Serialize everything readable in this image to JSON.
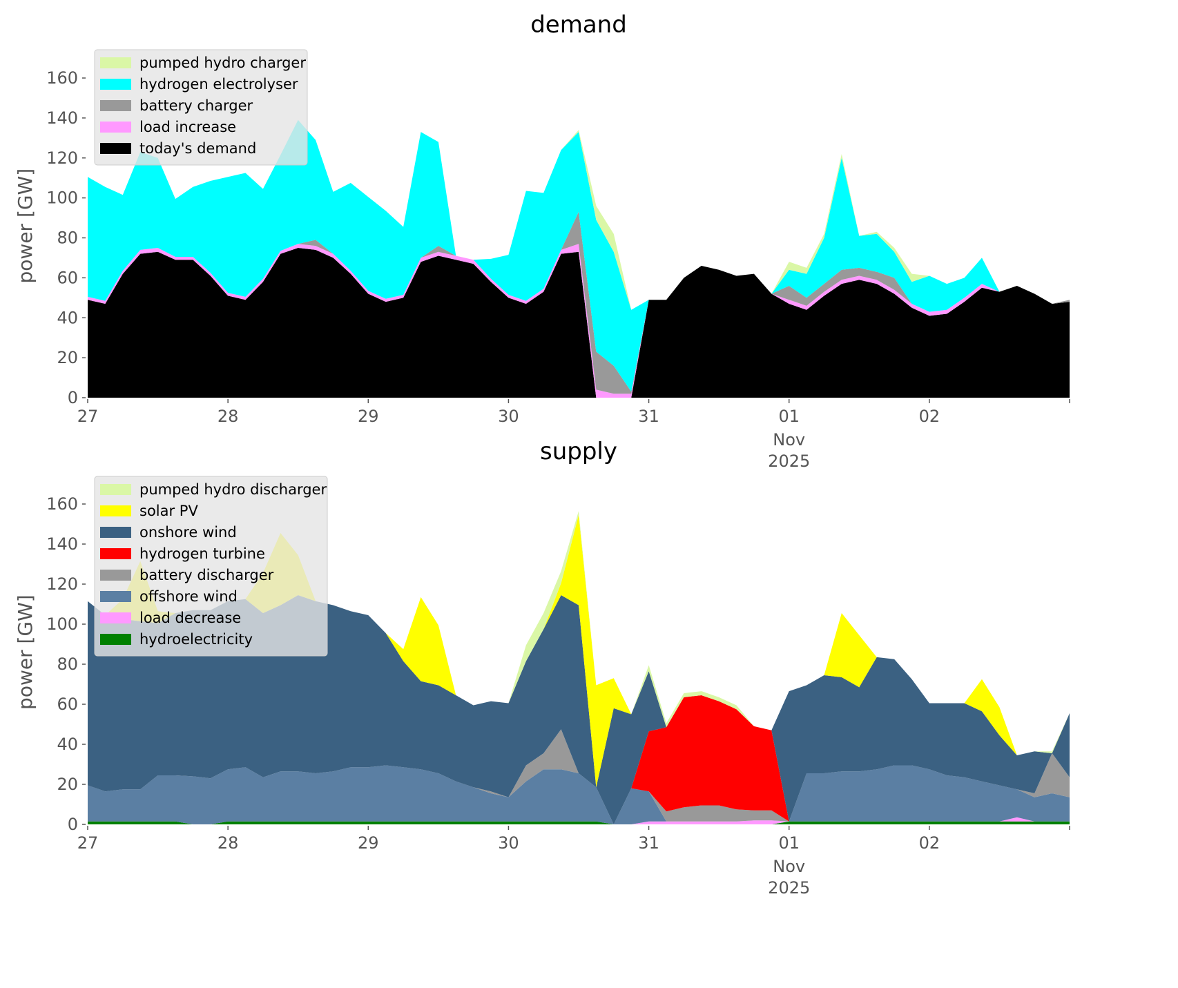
{
  "chart_data": [
    {
      "type": "area",
      "stacked": true,
      "title": "demand",
      "xlabel": "",
      "ylabel": "power [GW]",
      "ylim": [
        0,
        172
      ],
      "yticks": [
        0,
        20,
        40,
        60,
        80,
        100,
        120,
        140,
        160
      ],
      "xrange_days": [
        0,
        7
      ],
      "xticks": [
        {
          "day": 0,
          "label": "27"
        },
        {
          "day": 1,
          "label": "28"
        },
        {
          "day": 2,
          "label": "29"
        },
        {
          "day": 3,
          "label": "30"
        },
        {
          "day": 4,
          "label": "31"
        },
        {
          "day": 5,
          "label": "01",
          "sub": [
            "Nov",
            "2025"
          ]
        },
        {
          "day": 6,
          "label": "02"
        },
        {
          "day": 7,
          "label": ""
        }
      ],
      "x_hours_step": 3,
      "legend_position": "top-left",
      "series": [
        {
          "name": "today's demand",
          "color": "#000000",
          "values": [
            49,
            47,
            62,
            72,
            73,
            69,
            69,
            61,
            51,
            49,
            58,
            72,
            75,
            74,
            70,
            62,
            52,
            48,
            50,
            68,
            71,
            69,
            67,
            58,
            50,
            47,
            53,
            72,
            73,
            0,
            0,
            0,
            49,
            49,
            60,
            66,
            64,
            61,
            62,
            52,
            47,
            44,
            51,
            57,
            59,
            57,
            52,
            45,
            41,
            42,
            48,
            55,
            53,
            56,
            52,
            47,
            48
          ]
        },
        {
          "name": "load increase",
          "color": "#ff99ff",
          "values": [
            1.5,
            1.5,
            1.5,
            2,
            2,
            1.5,
            1.5,
            1.5,
            1.5,
            1.5,
            1.5,
            1.5,
            2,
            2,
            2,
            1.5,
            1.5,
            1.5,
            1.5,
            2,
            2,
            2,
            2,
            1.5,
            1.5,
            1.5,
            1.5,
            2,
            4,
            4,
            2,
            2,
            0,
            0,
            0,
            0,
            0,
            0,
            0,
            0,
            2,
            2,
            2,
            2,
            2,
            2,
            2,
            2,
            2,
            2,
            2,
            2,
            0,
            0,
            0,
            0,
            0
          ]
        },
        {
          "name": "battery charger",
          "color": "#999999",
          "values": [
            0,
            0,
            0,
            0,
            0,
            0,
            0,
            0,
            0,
            0,
            0,
            0,
            0,
            3,
            0,
            0,
            0,
            0,
            0,
            0,
            3,
            0,
            0,
            0,
            0,
            0,
            0,
            0,
            16,
            19,
            14,
            1,
            0,
            0,
            0,
            0,
            0,
            0,
            0,
            0,
            7,
            4,
            4,
            5,
            4,
            4,
            6,
            0,
            0,
            0,
            0,
            0,
            0,
            0,
            0,
            0,
            1
          ]
        },
        {
          "name": "hydrogen electrolyser",
          "color": "#00ffff",
          "values": [
            60,
            57,
            38,
            49,
            45,
            29,
            35,
            46,
            58,
            62,
            45,
            48,
            62,
            50,
            31,
            44,
            47,
            44,
            34,
            63,
            52,
            0,
            0,
            10,
            20,
            55,
            48,
            50,
            40,
            66,
            57,
            41,
            0,
            0,
            0,
            0,
            0,
            0,
            0,
            0,
            8,
            12,
            23,
            56,
            16,
            19,
            13,
            11,
            18,
            13,
            10,
            13,
            0,
            0,
            0,
            0,
            0
          ]
        },
        {
          "name": "pumped hydro charger",
          "color": "#daf7a6",
          "values": [
            0,
            0,
            0,
            0,
            0,
            0,
            0,
            0,
            0,
            0,
            0,
            0,
            0,
            0,
            0,
            0,
            0,
            0,
            0,
            0,
            0,
            0,
            0,
            0,
            0,
            0,
            0,
            0,
            1,
            7,
            9,
            0,
            0,
            0,
            0,
            0,
            0,
            0,
            0,
            0,
            4,
            3,
            2,
            2,
            0,
            1,
            2,
            4,
            0,
            0,
            0,
            0,
            0,
            0,
            0,
            0,
            0
          ]
        }
      ]
    },
    {
      "type": "area",
      "stacked": true,
      "title": "supply",
      "xlabel": "",
      "ylabel": "power [GW]",
      "ylim": [
        0,
        172
      ],
      "yticks": [
        0,
        20,
        40,
        60,
        80,
        100,
        120,
        140,
        160
      ],
      "xrange_days": [
        0,
        7
      ],
      "xticks": [
        {
          "day": 0,
          "label": "27"
        },
        {
          "day": 1,
          "label": "28"
        },
        {
          "day": 2,
          "label": "29"
        },
        {
          "day": 3,
          "label": "30"
        },
        {
          "day": 4,
          "label": "31"
        },
        {
          "day": 5,
          "label": "01",
          "sub": [
            "Nov",
            "2025"
          ]
        },
        {
          "day": 6,
          "label": "02"
        },
        {
          "day": 7,
          "label": ""
        }
      ],
      "x_hours_step": 3,
      "legend_position": "top-left",
      "series": [
        {
          "name": "hydroelectricity",
          "color": "#008000",
          "values": [
            1.5,
            1.5,
            1.5,
            1.5,
            1.5,
            1.5,
            0,
            0,
            1.5,
            1.5,
            1.5,
            1.5,
            1.5,
            1.5,
            1.5,
            1.5,
            1.5,
            1.5,
            1.5,
            1.5,
            1.5,
            1.5,
            1.5,
            1.5,
            1.5,
            1.5,
            1.5,
            1.5,
            1.5,
            1.5,
            0,
            0,
            0,
            0,
            0,
            0,
            0,
            0,
            0,
            0,
            1.5,
            1.5,
            1.5,
            1.5,
            1.5,
            1.5,
            1.5,
            1.5,
            1.5,
            1.5,
            1.5,
            1.5,
            1.5,
            1.5,
            1.5,
            1.5,
            1.5
          ]
        },
        {
          "name": "load decrease",
          "color": "#ff99ff",
          "values": [
            0,
            0,
            0,
            0,
            0,
            0,
            0,
            0,
            0,
            0,
            0,
            0,
            0,
            0,
            0,
            0,
            0,
            0,
            0,
            0,
            0,
            0,
            0,
            0,
            0,
            0,
            0,
            0,
            0,
            0,
            0,
            0,
            1.5,
            1.5,
            1.5,
            1.5,
            1.5,
            1.5,
            2,
            2,
            0,
            0,
            0,
            0,
            0,
            0,
            0,
            0,
            0,
            0,
            0,
            0,
            0,
            2,
            0,
            0,
            0
          ]
        },
        {
          "name": "offshore wind",
          "color": "#5b7fa3",
          "values": [
            18,
            15,
            16,
            16,
            23,
            23,
            24,
            23,
            26,
            27,
            22,
            25,
            25,
            24,
            25,
            27,
            27,
            28,
            27,
            26,
            24,
            20,
            17,
            14,
            12,
            20,
            26,
            26,
            24,
            17,
            0,
            18,
            15,
            0,
            0,
            0,
            0,
            0,
            0,
            0,
            0,
            24,
            24,
            25,
            25,
            26,
            28,
            28,
            26,
            23,
            22,
            20,
            18,
            14,
            12,
            14,
            12
          ]
        },
        {
          "name": "battery discharger",
          "color": "#999999",
          "values": [
            0,
            0,
            0,
            0,
            0,
            0,
            0,
            0,
            0,
            0,
            0,
            0,
            0,
            0,
            0,
            0,
            0,
            0,
            0,
            0,
            0,
            0,
            0,
            1,
            0,
            8,
            8,
            20,
            0,
            0,
            0,
            0,
            0,
            5,
            7,
            8,
            8,
            6,
            5,
            5,
            0,
            0,
            0,
            0,
            0,
            0,
            0,
            0,
            0,
            0,
            0,
            0,
            0,
            0,
            2,
            20,
            10
          ]
        },
        {
          "name": "hydrogen turbine",
          "color": "#ff0000",
          "values": [
            0,
            0,
            0,
            0,
            0,
            0,
            0,
            0,
            0,
            0,
            0,
            0,
            0,
            0,
            0,
            0,
            0,
            0,
            0,
            0,
            0,
            0,
            0,
            0,
            0,
            0,
            0,
            0,
            0,
            0,
            0,
            0,
            30,
            42,
            55,
            55,
            52,
            50,
            42,
            40,
            0,
            0,
            0,
            0,
            0,
            0,
            0,
            0,
            0,
            0,
            0,
            0,
            0,
            0,
            0,
            0,
            0
          ]
        },
        {
          "name": "onshore wind",
          "color": "#3b6182",
          "values": [
            92,
            88,
            85,
            84,
            76,
            81,
            83,
            84,
            84,
            84,
            82,
            83,
            88,
            86,
            83,
            78,
            76,
            66,
            53,
            44,
            44,
            43,
            41,
            45,
            47,
            52,
            62,
            67,
            84,
            0,
            58,
            37,
            30,
            0,
            0,
            0,
            0,
            0,
            0,
            0,
            65,
            44,
            49,
            47,
            42,
            56,
            53,
            43,
            33,
            36,
            37,
            35,
            25,
            17,
            21,
            0,
            32
          ]
        },
        {
          "name": "solar PV",
          "color": "#ffff00",
          "values": [
            0,
            0,
            10,
            30,
            6,
            0,
            0,
            0,
            0,
            0,
            20,
            36,
            20,
            0,
            0,
            0,
            0,
            0,
            6,
            42,
            30,
            0,
            0,
            0,
            0,
            0,
            0,
            6,
            45,
            51,
            15,
            0,
            0,
            0,
            0,
            0,
            0,
            0,
            0,
            0,
            0,
            0,
            0,
            32,
            26,
            0,
            0,
            0,
            0,
            0,
            0,
            16,
            14,
            0,
            0,
            0,
            0
          ]
        },
        {
          "name": "pumped hydro discharger",
          "color": "#daf7a6",
          "values": [
            0,
            0,
            0,
            0,
            0,
            0,
            0,
            0,
            0,
            0,
            0,
            0,
            0,
            0,
            0,
            0,
            0,
            0,
            0,
            0,
            0,
            0,
            0,
            0,
            0,
            8,
            8,
            6,
            2,
            0,
            0,
            0,
            3,
            2,
            2,
            2,
            2,
            2,
            0,
            0,
            0,
            0,
            0,
            0,
            0,
            0,
            0,
            0,
            0,
            0,
            0,
            0,
            0,
            0,
            0,
            1,
            0
          ]
        }
      ]
    }
  ]
}
